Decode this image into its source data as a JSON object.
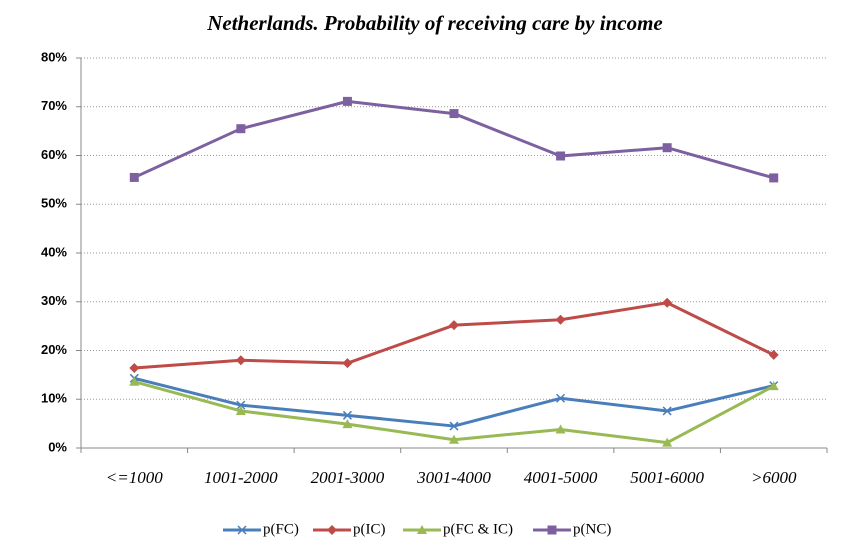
{
  "chart_data": {
    "type": "line",
    "title": "Netherlands. Probability of receiving care by income",
    "categories": [
      "<=1000",
      "1001-2000",
      "2001-3000",
      "3001-4000",
      "4001-5000",
      "5001-6000",
      ">6000"
    ],
    "series": [
      {
        "name": "p(FC)",
        "color": "#4a7ebb",
        "marker": "x",
        "values": [
          14.3,
          8.8,
          6.7,
          4.5,
          10.2,
          7.6,
          12.8
        ]
      },
      {
        "name": "p(IC)",
        "color": "#be4b48",
        "marker": "diamond",
        "values": [
          16.4,
          18.0,
          17.4,
          25.2,
          26.3,
          29.8,
          19.1
        ]
      },
      {
        "name": "p(FC & IC)",
        "color": "#98b954",
        "marker": "triangle",
        "values": [
          13.6,
          7.6,
          4.9,
          1.7,
          3.8,
          1.1,
          12.7
        ]
      },
      {
        "name": "p(NC)",
        "color": "#7d60a0",
        "marker": "square",
        "values": [
          55.5,
          65.5,
          71.1,
          68.6,
          59.9,
          61.6,
          55.4
        ]
      }
    ],
    "ylim": [
      0,
      80
    ],
    "yticks": [
      {
        "value": 0,
        "label": "0%"
      },
      {
        "value": 10,
        "label": "10%"
      },
      {
        "value": 20,
        "label": "20%"
      },
      {
        "value": 30,
        "label": "30%"
      },
      {
        "value": 40,
        "label": "40%"
      },
      {
        "value": 50,
        "label": "50%"
      },
      {
        "value": 60,
        "label": "60%"
      },
      {
        "value": 70,
        "label": "70%"
      },
      {
        "value": 80,
        "label": "80%"
      }
    ],
    "grid": true,
    "legend": "bottom"
  }
}
